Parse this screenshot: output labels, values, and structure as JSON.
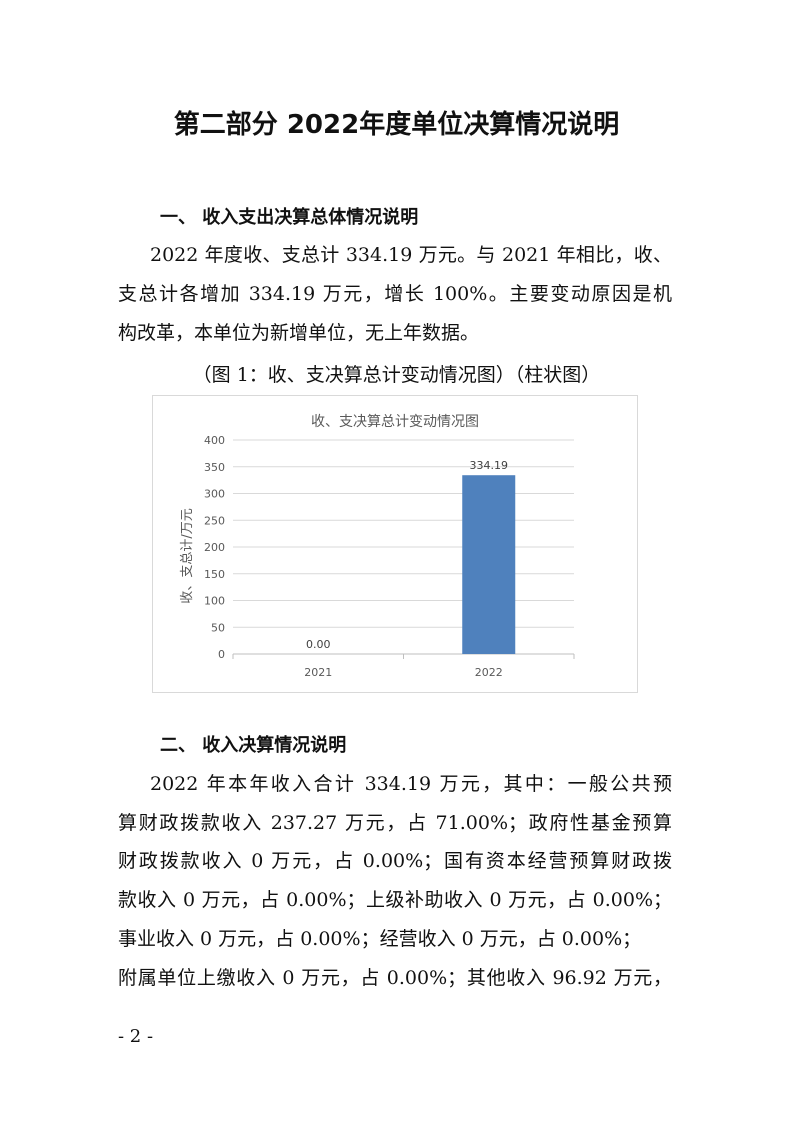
{
  "title": "第二部分 2022年度单位决算情况说明",
  "section1": {
    "heading": "一、 收入支出决算总体情况说明",
    "lines": [
      "2022 年度收、支总计 334.19 万元。与 2021 年相比，收、",
      "支总计各增加 334.19 万元，增长 100%。主要变动原因是机",
      "构改革，本单位为新增单位，无上年数据。"
    ],
    "caption": "（图 1：收、支决算总计变动情况图）（柱状图）"
  },
  "chart_data": {
    "type": "bar",
    "title": "收、支决算总计变动情况图",
    "xlabel": "",
    "ylabel": "收、支总计/万元",
    "categories": [
      "2021",
      "2022"
    ],
    "values": [
      0.0,
      334.19
    ],
    "data_labels": [
      "0.00",
      "334.19"
    ],
    "ylim": [
      0,
      400
    ],
    "yticks": [
      "0",
      "50",
      "100",
      "150",
      "200",
      "250",
      "300",
      "350",
      "400"
    ],
    "grid": true,
    "bar_color": "#4f81bd"
  },
  "section2": {
    "heading": "二、 收入决算情况说明",
    "lines": [
      "2022 年本年收入合计 334.19 万元，其中：一般公共预",
      "算财政拨款收入 237.27 万元，占 71.00%；政府性基金预算",
      "财政拨款收入 0 万元，占 0.00%；国有资本经营预算财政拨",
      "款收入 0 万元，占 0.00%；上级补助收入 0 万元，占 0.00%；",
      "事业收入 0 万元，占 0.00%；经营收入 0 万元，占 0.00%；",
      "附属单位上缴收入 0 万元，占 0.00%；其他收入 96.92 万元，"
    ]
  },
  "page_number": "- 2 -"
}
